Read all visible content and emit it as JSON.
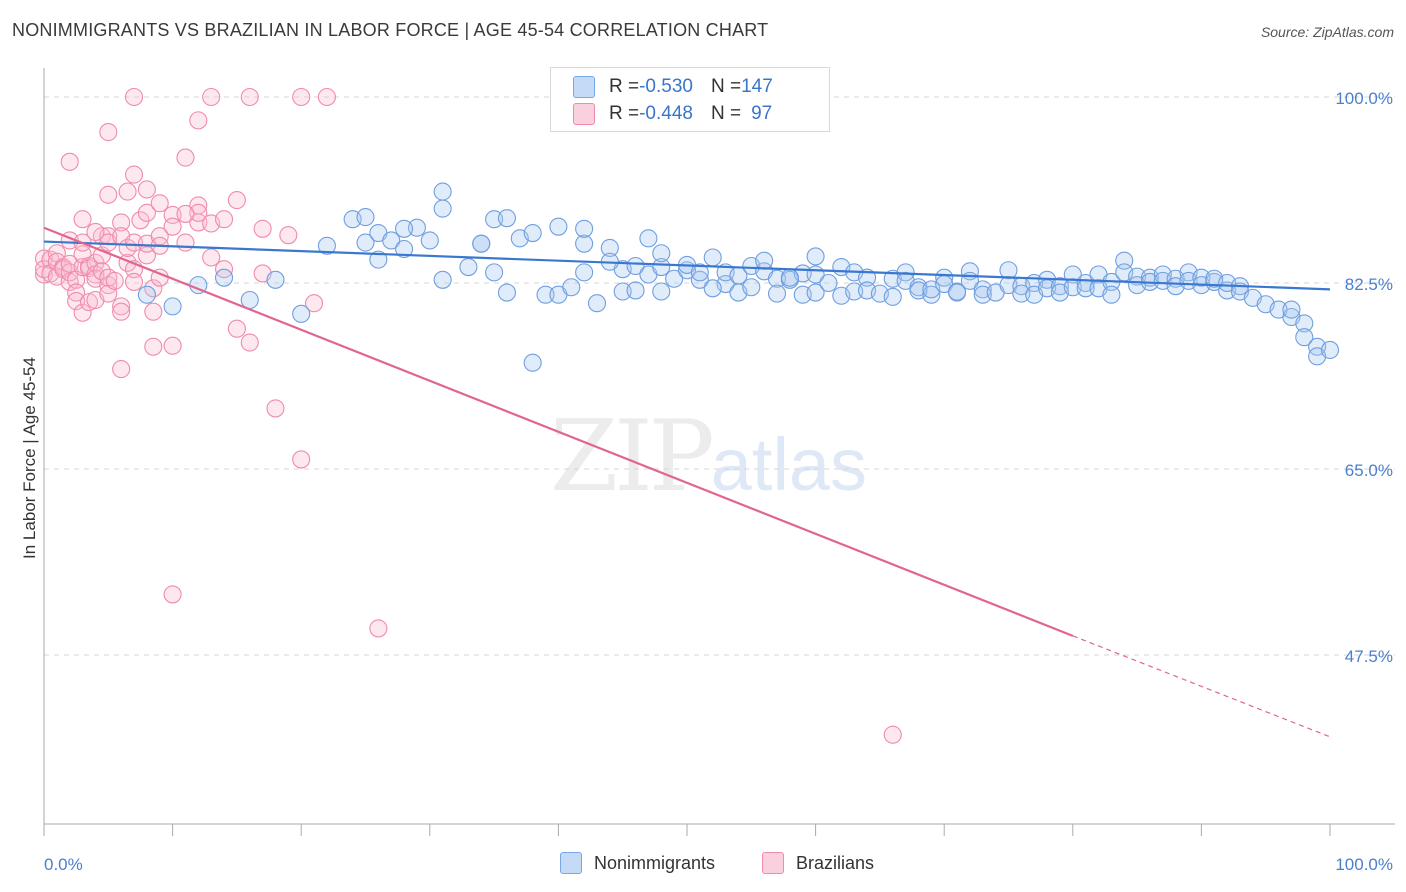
{
  "title": "NONIMMIGRANTS VS BRAZILIAN IN LABOR FORCE | AGE 45-54 CORRELATION CHART",
  "source": "Source: ZipAtlas.com",
  "watermark": {
    "zip": "ZIP",
    "atlas": "atlas"
  },
  "legend": {
    "rows": [
      {
        "r_label": "R = ",
        "r_value": "-0.530",
        "n_label": "N = ",
        "n_value": "147"
      },
      {
        "r_label": "R = ",
        "r_value": "-0.448",
        "n_label": "N = ",
        "n_value": "97"
      }
    ]
  },
  "bottom_legend": [
    "Nonimmigrants",
    "Brazilians"
  ],
  "chart_data": {
    "type": "scatter",
    "title": "NONIMMIGRANTS VS BRAZILIAN IN LABOR FORCE | AGE 45-54 CORRELATION CHART",
    "ylabel": "In Labor Force | Age 45-54",
    "xlabel": "",
    "x_tick_labels": [
      "0.0%",
      "100.0%"
    ],
    "y_tick_labels": [
      "100.0%",
      "82.5%",
      "65.0%",
      "47.5%"
    ],
    "y_ticks": [
      100.0,
      82.5,
      65.0,
      47.5
    ],
    "xlim": [
      0,
      100
    ],
    "ylim": [
      34,
      101.5
    ],
    "grid": "horizontal dashed",
    "legend_placement": "top-center",
    "colors": {
      "Nonimmigrants": "#7aa7e6",
      "Brazilians": "#f08bab",
      "blue_line": "#3a78cf",
      "pink_line": "#e0668f"
    },
    "series": [
      {
        "name": "Nonimmigrants",
        "stats": {
          "R": -0.53,
          "N": 147
        },
        "trend": {
          "x": [
            0,
            100
          ],
          "y": [
            86.4,
            81.9
          ]
        },
        "points": [
          [
            22,
            86.0
          ],
          [
            24,
            88.5
          ],
          [
            25,
            86.3
          ],
          [
            25,
            88.7
          ],
          [
            26,
            84.7
          ],
          [
            26,
            87.2
          ],
          [
            27,
            86.5
          ],
          [
            28,
            85.7
          ],
          [
            29,
            87.7
          ],
          [
            30,
            86.5
          ],
          [
            31,
            91.1
          ],
          [
            31,
            89.5
          ],
          [
            31,
            82.8
          ],
          [
            33,
            84.0
          ],
          [
            34,
            86.2
          ],
          [
            35,
            83.5
          ],
          [
            35,
            88.5
          ],
          [
            36,
            88.6
          ],
          [
            36,
            81.6
          ],
          [
            37,
            86.7
          ],
          [
            38,
            87.2
          ],
          [
            38,
            75.0
          ],
          [
            39,
            81.4
          ],
          [
            40,
            87.8
          ],
          [
            40,
            81.4
          ],
          [
            41,
            82.1
          ],
          [
            42,
            83.5
          ],
          [
            42,
            86.2
          ],
          [
            42,
            87.6
          ],
          [
            43,
            80.6
          ],
          [
            44,
            85.8
          ],
          [
            45,
            83.8
          ],
          [
            45,
            81.7
          ],
          [
            46,
            84.1
          ],
          [
            47,
            83.3
          ],
          [
            47,
            86.7
          ],
          [
            48,
            84.0
          ],
          [
            48,
            81.7
          ],
          [
            48,
            85.3
          ],
          [
            49,
            82.9
          ],
          [
            50,
            83.7
          ],
          [
            50,
            84.2
          ],
          [
            51,
            82.8
          ],
          [
            51,
            83.5
          ],
          [
            52,
            84.9
          ],
          [
            53,
            82.4
          ],
          [
            53,
            83.5
          ],
          [
            54,
            83.2
          ],
          [
            54,
            81.6
          ],
          [
            55,
            84.1
          ],
          [
            55,
            82.1
          ],
          [
            56,
            83.6
          ],
          [
            57,
            82.9
          ],
          [
            57,
            81.5
          ],
          [
            58,
            82.8
          ],
          [
            59,
            81.4
          ],
          [
            59,
            83.4
          ],
          [
            60,
            83.3
          ],
          [
            60,
            81.6
          ],
          [
            61,
            82.5
          ],
          [
            62,
            81.3
          ],
          [
            62,
            84.0
          ],
          [
            63,
            81.7
          ],
          [
            63,
            83.5
          ],
          [
            64,
            83.0
          ],
          [
            64,
            81.8
          ],
          [
            65,
            81.5
          ],
          [
            66,
            81.2
          ],
          [
            66,
            82.9
          ],
          [
            67,
            83.5
          ],
          [
            67,
            82.7
          ],
          [
            68,
            82.1
          ],
          [
            68,
            81.8
          ],
          [
            69,
            81.4
          ],
          [
            69,
            81.9
          ],
          [
            70,
            83.0
          ],
          [
            70,
            82.4
          ],
          [
            71,
            81.7
          ],
          [
            71,
            81.6
          ],
          [
            72,
            83.6
          ],
          [
            72,
            82.7
          ],
          [
            73,
            81.9
          ],
          [
            73,
            81.4
          ],
          [
            74,
            81.6
          ],
          [
            75,
            83.7
          ],
          [
            75,
            82.3
          ],
          [
            76,
            82.2
          ],
          [
            76,
            81.5
          ],
          [
            77,
            82.5
          ],
          [
            77,
            81.4
          ],
          [
            78,
            82.8
          ],
          [
            78,
            82.0
          ],
          [
            79,
            82.2
          ],
          [
            79,
            81.6
          ],
          [
            80,
            83.3
          ],
          [
            80,
            82.1
          ],
          [
            81,
            82.5
          ],
          [
            81,
            82.0
          ],
          [
            82,
            83.3
          ],
          [
            82,
            82.0
          ],
          [
            83,
            82.6
          ],
          [
            83,
            81.4
          ],
          [
            84,
            84.6
          ],
          [
            84,
            83.5
          ],
          [
            85,
            83.1
          ],
          [
            85,
            82.3
          ],
          [
            86,
            83.0
          ],
          [
            86,
            82.6
          ],
          [
            87,
            83.3
          ],
          [
            87,
            82.7
          ],
          [
            88,
            82.9
          ],
          [
            88,
            82.2
          ],
          [
            89,
            83.5
          ],
          [
            89,
            82.7
          ],
          [
            90,
            83.0
          ],
          [
            90,
            82.3
          ],
          [
            91,
            82.6
          ],
          [
            91,
            82.9
          ],
          [
            92,
            81.8
          ],
          [
            92,
            82.5
          ],
          [
            93,
            82.2
          ],
          [
            93,
            81.7
          ],
          [
            94,
            81.1
          ],
          [
            95,
            80.5
          ],
          [
            96,
            80.0
          ],
          [
            97,
            79.3
          ],
          [
            97,
            80.0
          ],
          [
            98,
            78.7
          ],
          [
            98,
            77.4
          ],
          [
            99,
            76.5
          ],
          [
            99,
            75.6
          ],
          [
            100,
            76.2
          ],
          [
            8,
            81.4
          ],
          [
            10,
            80.3
          ],
          [
            12,
            82.3
          ],
          [
            14,
            83.0
          ],
          [
            16,
            80.9
          ],
          [
            18,
            82.8
          ],
          [
            20,
            79.6
          ],
          [
            28,
            87.6
          ],
          [
            34,
            86.2
          ],
          [
            44,
            84.5
          ],
          [
            46,
            81.8
          ],
          [
            52,
            82.0
          ],
          [
            56,
            84.6
          ],
          [
            58,
            83.0
          ],
          [
            60,
            85.0
          ]
        ]
      },
      {
        "name": "Brazilians",
        "stats": {
          "R": -0.448,
          "N": 97
        },
        "trend": {
          "x": [
            0,
            80
          ],
          "y": [
            87.7,
            49.3
          ]
        },
        "trend_dashed": {
          "x": [
            80,
            100
          ],
          "y": [
            49.3,
            39.8
          ]
        },
        "points": [
          [
            0,
            83.3
          ],
          [
            0,
            84.8
          ],
          [
            0,
            83.8
          ],
          [
            0.5,
            84.7
          ],
          [
            0.5,
            83.4
          ],
          [
            1,
            83.1
          ],
          [
            1,
            85.3
          ],
          [
            1,
            84.5
          ],
          [
            1.5,
            84.0
          ],
          [
            1.5,
            83.8
          ],
          [
            2,
            82.6
          ],
          [
            2,
            83.5
          ],
          [
            2,
            84.3
          ],
          [
            2,
            86.5
          ],
          [
            2.5,
            82.8
          ],
          [
            2.5,
            81.6
          ],
          [
            2.5,
            80.8
          ],
          [
            3,
            79.7
          ],
          [
            3,
            84.0
          ],
          [
            3,
            85.2
          ],
          [
            3,
            86.3
          ],
          [
            3,
            88.5
          ],
          [
            3.5,
            84.1
          ],
          [
            3.5,
            80.7
          ],
          [
            3.5,
            83.9
          ],
          [
            4,
            84.4
          ],
          [
            4,
            83.3
          ],
          [
            4,
            82.9
          ],
          [
            4,
            80.9
          ],
          [
            4.5,
            85.1
          ],
          [
            4.5,
            86.9
          ],
          [
            4.5,
            83.6
          ],
          [
            5,
            82.3
          ],
          [
            5,
            83.0
          ],
          [
            5,
            90.8
          ],
          [
            5,
            86.9
          ],
          [
            5,
            81.5
          ],
          [
            5,
            86.3
          ],
          [
            5.5,
            82.7
          ],
          [
            6,
            80.3
          ],
          [
            6,
            79.8
          ],
          [
            6,
            88.2
          ],
          [
            6,
            74.4
          ],
          [
            6,
            86.9
          ],
          [
            6.5,
            84.4
          ],
          [
            6.5,
            85.8
          ],
          [
            7,
            83.8
          ],
          [
            7,
            82.6
          ],
          [
            7,
            86.3
          ],
          [
            7,
            92.7
          ],
          [
            7.5,
            88.4
          ],
          [
            8,
            85.1
          ],
          [
            8,
            89.1
          ],
          [
            8,
            91.3
          ],
          [
            8,
            86.2
          ],
          [
            8.5,
            79.8
          ],
          [
            8.5,
            82.0
          ],
          [
            9,
            83.0
          ],
          [
            9,
            86.9
          ],
          [
            9,
            86.0
          ],
          [
            10,
            88.9
          ],
          [
            10,
            87.8
          ],
          [
            11,
            94.3
          ],
          [
            11,
            86.3
          ],
          [
            12,
            89.8
          ],
          [
            12,
            88.2
          ],
          [
            12,
            89.1
          ],
          [
            13,
            88.1
          ],
          [
            13,
            84.9
          ],
          [
            14,
            83.8
          ],
          [
            15,
            90.3
          ],
          [
            15,
            78.2
          ],
          [
            16,
            76.9
          ],
          [
            17,
            83.4
          ],
          [
            17,
            87.6
          ],
          [
            18,
            70.7
          ],
          [
            19,
            87.0
          ],
          [
            20,
            65.9
          ],
          [
            21,
            80.6
          ],
          [
            10,
            76.6
          ],
          [
            10,
            53.2
          ],
          [
            12,
            97.8
          ],
          [
            13,
            100.0
          ],
          [
            16,
            100.0
          ],
          [
            20,
            100.0
          ],
          [
            22,
            100.0
          ],
          [
            7,
            100.0
          ],
          [
            5,
            96.7
          ],
          [
            2,
            93.9
          ],
          [
            9,
            90.0
          ],
          [
            11,
            89.0
          ],
          [
            14,
            88.5
          ],
          [
            8.5,
            76.5
          ],
          [
            26,
            50.0
          ],
          [
            66,
            40.0
          ],
          [
            4,
            87.3
          ],
          [
            6.5,
            91.1
          ]
        ]
      }
    ]
  }
}
